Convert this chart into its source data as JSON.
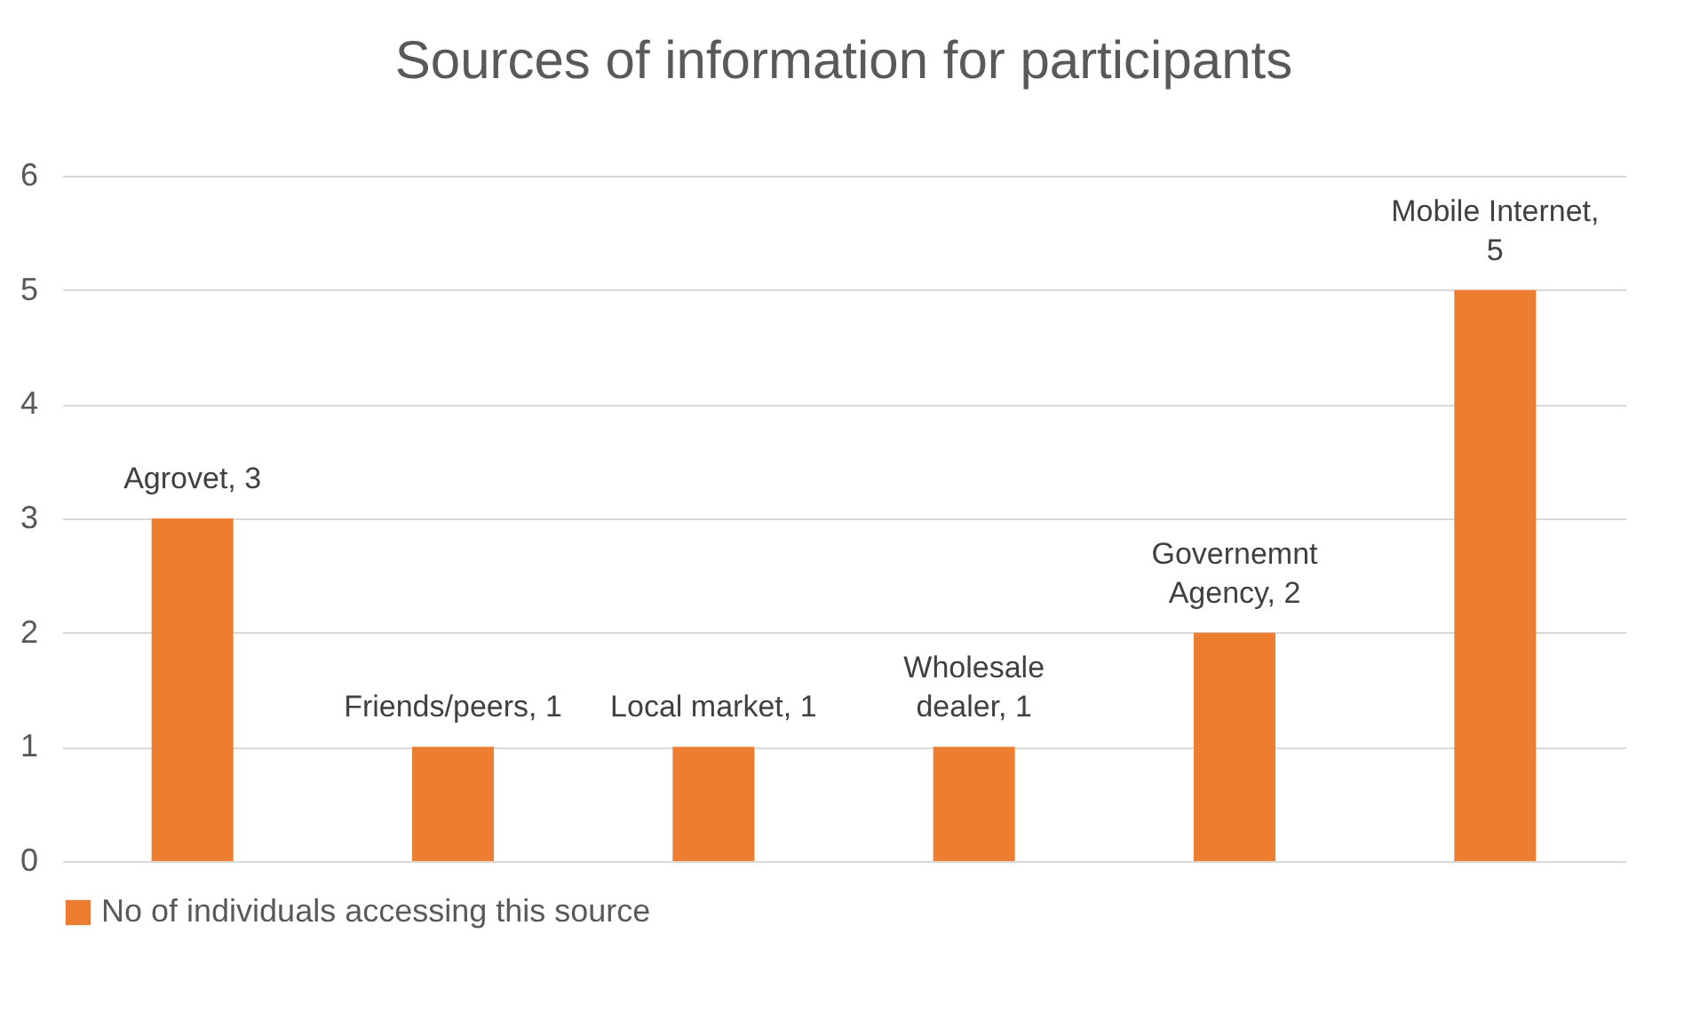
{
  "chart_data": {
    "type": "bar",
    "title": "Sources of information for participants",
    "categories": [
      null,
      null,
      null,
      null,
      null,
      null
    ],
    "series": [
      {
        "name": "No of individuals accessing this source",
        "color": "#ed7d31",
        "values": [
          3,
          1,
          1,
          1,
          2,
          5
        ]
      }
    ],
    "value_labels": [
      "Agrovet, 3",
      "Friends/peers, 1",
      "Local market, 1",
      "Wholesale dealer, 1",
      "Governemnt Agency, 2",
      "Mobile Internet, 5"
    ],
    "ylim": [
      0,
      6
    ],
    "yticks": [
      0,
      1,
      2,
      3,
      4,
      5,
      6
    ],
    "grid": "y",
    "legend": "bottom",
    "tick_labels": "y"
  }
}
